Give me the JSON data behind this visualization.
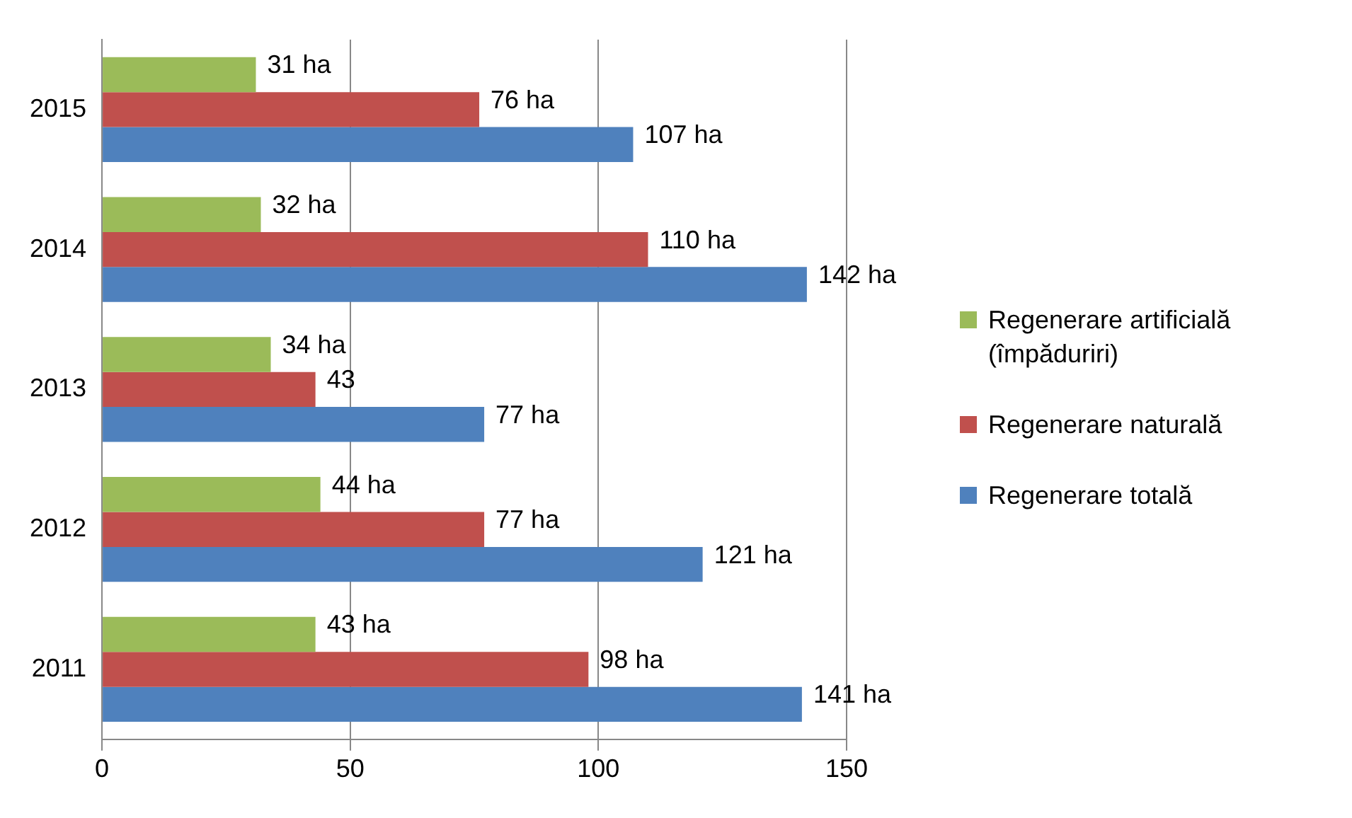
{
  "chart_data": {
    "type": "bar",
    "orientation": "horizontal",
    "categories": [
      "2015",
      "2014",
      "2013",
      "2012",
      "2011"
    ],
    "series": [
      {
        "name": "Regenerare artificială(împăduriri)",
        "color": "#9bbb59",
        "values": [
          31,
          32,
          34,
          44,
          43
        ],
        "value_labels": [
          "31 ha",
          "32 ha",
          "34 ha",
          "44 ha",
          "43 ha"
        ]
      },
      {
        "name": "Regenerare naturală",
        "color": "#c0504d",
        "values": [
          76,
          110,
          43,
          77,
          98
        ],
        "value_labels": [
          "76 ha",
          "110 ha",
          "43",
          "77 ha",
          "98 ha"
        ]
      },
      {
        "name": "Regenerare totală",
        "color": "#4f81bd",
        "values": [
          107,
          142,
          77,
          121,
          141
        ],
        "value_labels": [
          "107 ha",
          "142 ha",
          "77 ha",
          "121 ha",
          "141 ha"
        ]
      }
    ],
    "xlim": [
      0,
      150
    ],
    "xticks": [
      0,
      50,
      100,
      150
    ],
    "grid": "x",
    "legend": "right"
  }
}
